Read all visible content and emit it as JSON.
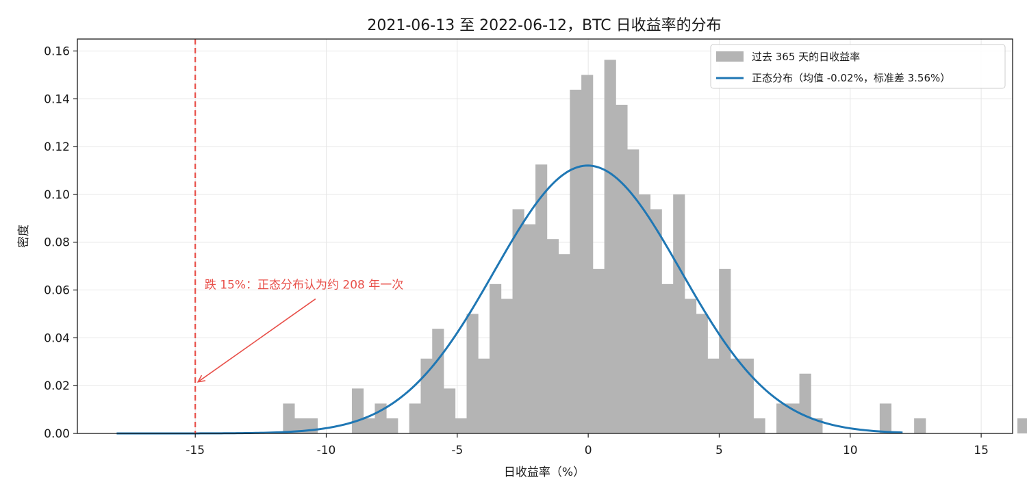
{
  "chart_data": {
    "type": "histogram",
    "title": "2021-06-13 至 2022-06-12，BTC 日收益率的分布",
    "xlabel": "日收益率（%）",
    "ylabel": "密度",
    "xlim": [
      -19.5,
      16.2
    ],
    "ylim": [
      0,
      0.165
    ],
    "x_ticks": [
      -15,
      -10,
      -5,
      0,
      5,
      10,
      15
    ],
    "x_tick_labels": [
      "-15",
      "-10",
      "-5",
      "0",
      "5",
      "10",
      "15"
    ],
    "y_ticks": [
      0.0,
      0.02,
      0.04,
      0.06,
      0.08,
      0.1,
      0.12,
      0.14,
      0.16
    ],
    "y_tick_labels": [
      "0.00",
      "0.02",
      "0.04",
      "0.06",
      "0.08",
      "0.10",
      "0.12",
      "0.14",
      "0.16"
    ],
    "grid": true,
    "legend_position": "top-right",
    "histogram": {
      "name": "过去 365 天的日收益率",
      "color": "#b4b4b4",
      "bin_start": -11.65,
      "bin_width": 0.438,
      "values": [
        0.0125,
        0.0063,
        0.0063,
        0,
        0,
        0,
        0.0188,
        0.0063,
        0.0125,
        0.0063,
        0,
        0.0125,
        0.0313,
        0.0438,
        0.0188,
        0.0063,
        0.05,
        0.0313,
        0.0625,
        0.0563,
        0.0938,
        0.0875,
        0.1125,
        0.0813,
        0.075,
        0.1438,
        0.15,
        0.0688,
        0.1563,
        0.1375,
        0.1188,
        0.1,
        0.0938,
        0.0625,
        0.1,
        0.0563,
        0.05,
        0.0313,
        0.0688,
        0.0313,
        0.0313,
        0.0063,
        0,
        0.0125,
        0.0125,
        0.025,
        0.0063,
        0,
        0,
        0,
        0,
        0,
        0.0125,
        0,
        0,
        0.0063,
        0,
        0,
        0,
        0,
        0,
        0,
        0,
        0,
        0.0063
      ]
    },
    "normal_curve": {
      "name": "正态分布（均值 -0.02%，标准差 3.56%）",
      "color": "#1f77b4",
      "mean": -0.02,
      "std": 3.56,
      "x_range": [
        -18,
        12
      ]
    },
    "reference_line": {
      "x": -15,
      "color": "#e8504a",
      "style": "dashed"
    },
    "annotation": {
      "text": "跌 15%：正态分布认为约 208 年一次",
      "color": "#e8504a",
      "text_x": -14.8,
      "text_y": 0.06,
      "arrow_to_x": -15,
      "arrow_to_y": 0.021
    }
  }
}
